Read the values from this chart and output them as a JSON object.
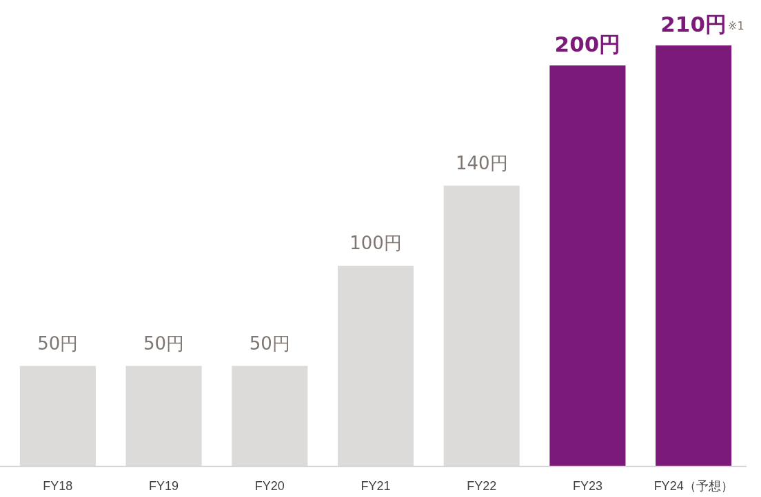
{
  "chart_data": {
    "type": "bar",
    "categories": [
      "FY18",
      "FY19",
      "FY20",
      "FY21",
      "FY22",
      "FY23",
      "FY24（予想）"
    ],
    "values": [
      50,
      50,
      50,
      100,
      140,
      200,
      210
    ],
    "colors": [
      "#dcdbda",
      "#dcdbda",
      "#dcdbda",
      "#dcdbda",
      "#dcdbda",
      "#7b1a78",
      "#7b1a78"
    ],
    "value_labels": [
      "50円",
      "50円",
      "50円",
      "100円",
      "140円",
      "200円",
      "210円"
    ],
    "annotations": [
      "※1"
    ]
  }
}
